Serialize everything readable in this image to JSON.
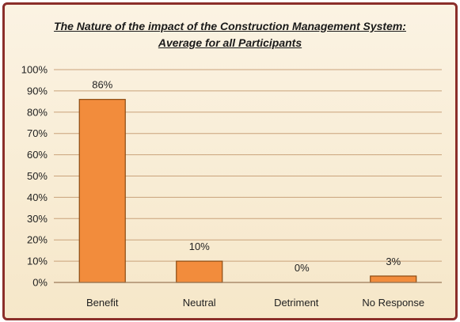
{
  "chart_data": {
    "type": "bar",
    "title": "The Nature of the impact of the Construction Management System:",
    "subtitle": "Average for all Participants",
    "xlabel": "",
    "ylabel": "",
    "categories": [
      "Benefit",
      "Neutral",
      "Detriment",
      "No Response"
    ],
    "values": [
      86,
      10,
      0,
      3
    ],
    "data_labels": [
      "86%",
      "10%",
      "0%",
      "3%"
    ],
    "ylim": [
      0,
      100
    ],
    "yticks": [
      0,
      10,
      20,
      30,
      40,
      50,
      60,
      70,
      80,
      90,
      100
    ],
    "ytick_labels": [
      "0%",
      "10%",
      "20%",
      "30%",
      "40%",
      "50%",
      "60%",
      "70%",
      "80%",
      "90%",
      "100%"
    ],
    "grid": true,
    "legend": "none",
    "colors": {
      "bar_fill": "#f28c3c",
      "bar_edge": "#8a4a12",
      "grid": "#c9a27a",
      "frame": "#8b2e2a",
      "background": "#f8ecd3"
    }
  }
}
